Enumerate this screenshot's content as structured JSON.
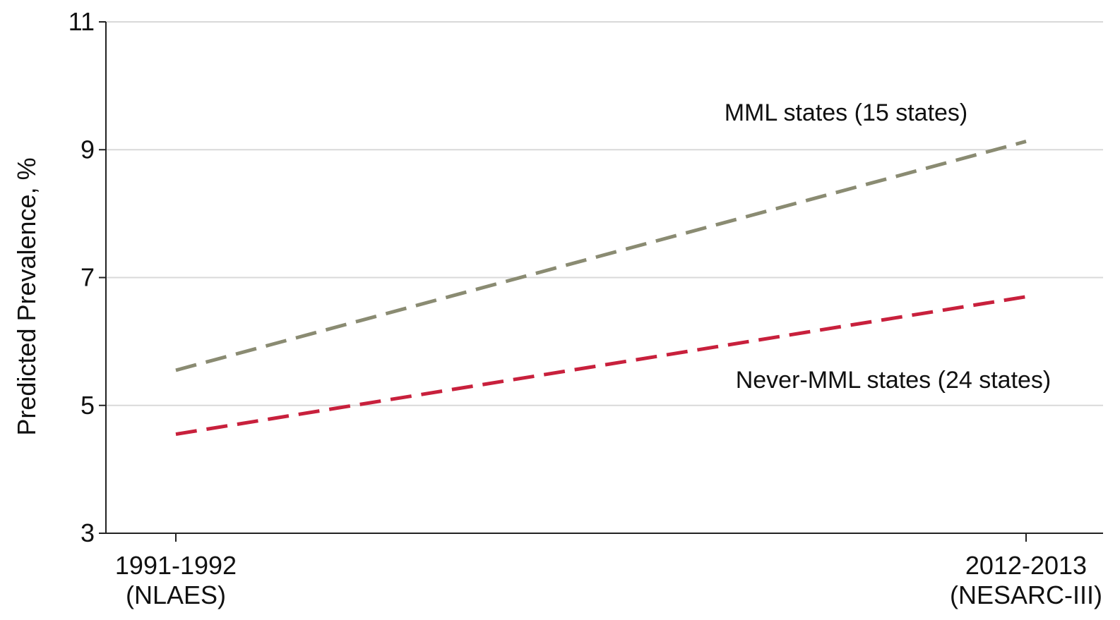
{
  "chart_data": {
    "type": "line",
    "title": "",
    "xlabel": "",
    "ylabel": "Predicted Prevalence, %",
    "ylim": [
      3,
      11
    ],
    "yticks": [
      "3",
      "5",
      "7",
      "9",
      "11"
    ],
    "categories": [
      [
        "1991-1992",
        "(NLAES)"
      ],
      [
        "2012-2013",
        "(NESARC-III)"
      ]
    ],
    "grid": true,
    "series": [
      {
        "name": "MML states (15 states)",
        "values": [
          5.55,
          9.13
        ],
        "color": "#8a8b72",
        "style": "dashed"
      },
      {
        "name": "Never-MML states (24 states)",
        "values": [
          4.55,
          6.7
        ],
        "color": "#c8203c",
        "style": "dashed"
      }
    ]
  }
}
